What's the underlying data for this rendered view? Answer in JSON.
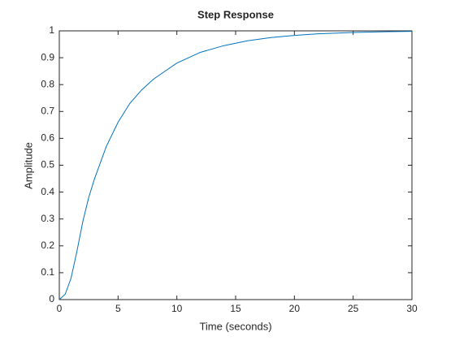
{
  "chart_data": {
    "type": "line",
    "title": "Step Response",
    "x_label": "Time (seconds)",
    "y_label": "Amplitude",
    "x": [
      0,
      0.5,
      1,
      1.5,
      2,
      2.5,
      3,
      4,
      5,
      6,
      7,
      8,
      9,
      10,
      12,
      14,
      16,
      18,
      20,
      22,
      25,
      28,
      30
    ],
    "series": [
      {
        "color": "#0072BD",
        "values": [
          0,
          0.02,
          0.08,
          0.18,
          0.29,
          0.38,
          0.45,
          0.57,
          0.66,
          0.73,
          0.78,
          0.82,
          0.85,
          0.88,
          0.92,
          0.945,
          0.963,
          0.975,
          0.983,
          0.989,
          0.994,
          0.997,
          0.998
        ]
      }
    ],
    "xlim": [
      0,
      30
    ],
    "xticks": [
      0,
      5,
      10,
      15,
      20,
      25,
      30
    ],
    "ylim": [
      0,
      1
    ],
    "yticks": [
      0,
      0.1,
      0.2,
      0.3,
      0.4,
      0.5,
      0.6,
      0.7,
      0.8,
      0.9,
      1
    ],
    "grid": false
  }
}
